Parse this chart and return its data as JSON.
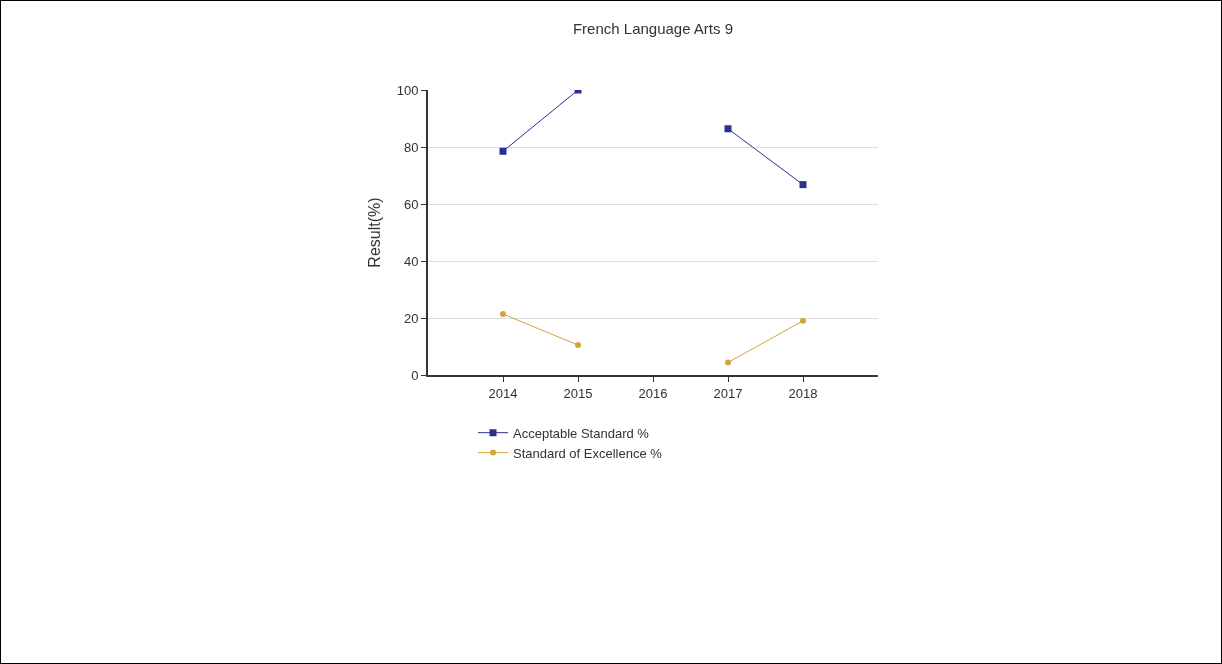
{
  "chart_data": {
    "type": "line",
    "title": "French Language Arts 9",
    "ylabel": "Result(%)",
    "categories": [
      "2014",
      "2015",
      "2016",
      "2017",
      "2018"
    ],
    "series": [
      {
        "name": "Acceptable Standard %",
        "color": "#2b2f8f",
        "marker": "square",
        "values": [
          78.5,
          100,
          null,
          86.4,
          66.8
        ]
      },
      {
        "name": "Standard of Excellence %",
        "color": "#d4a53c",
        "marker": "circle",
        "values": [
          21.4,
          10.5,
          null,
          4.4,
          19.0
        ]
      }
    ],
    "ylim": [
      0,
      100
    ],
    "yticks": [
      0,
      20,
      40,
      60,
      80,
      100
    ],
    "grid": "y",
    "legend": "bottom",
    "line_style": "solid"
  }
}
